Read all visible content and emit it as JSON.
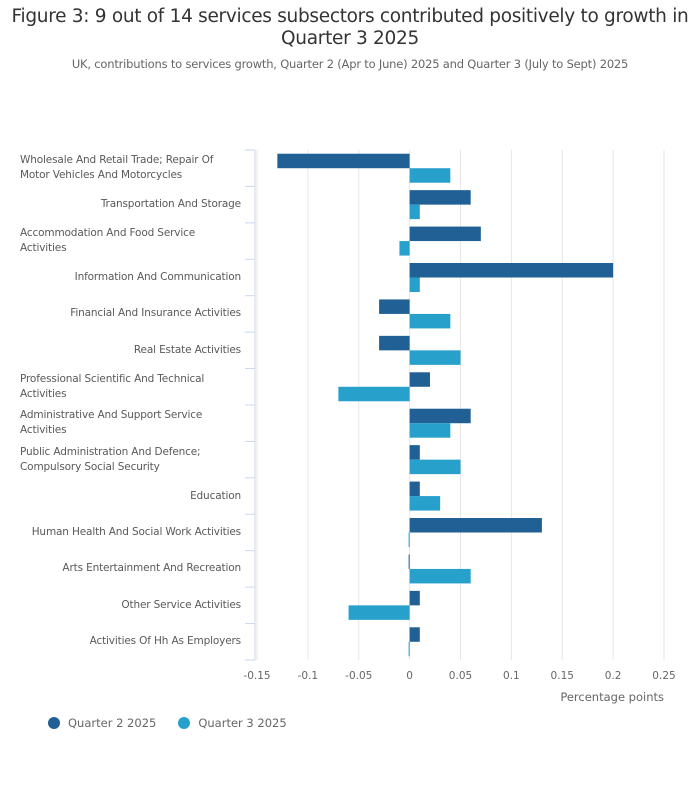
{
  "header": {
    "title": "Figure 3: 9 out of 14 services subsectors contributed positively to growth in Quarter 3 2025",
    "subtitle": "UK, contributions to services growth, Quarter 2 (Apr to June) 2025 and Quarter 3 (July to Sept) 2025"
  },
  "colors": {
    "q2": "#206095",
    "q3": "#27a0cc",
    "grid": "#e6e6e6",
    "axis": "#ccd6eb"
  },
  "chart_data": {
    "type": "bar",
    "orientation": "horizontal",
    "title": "Figure 3: 9 out of 14 services subsectors contributed positively to growth in Quarter 3 2025",
    "subtitle": "UK, contributions to services growth, Quarter 2 (Apr to June) 2025 and Quarter 3 (July to Sept) 2025",
    "xlabel": "Percentage points",
    "ylabel": "",
    "xlim": [
      -0.15,
      0.25
    ],
    "xticks": [
      -0.15,
      -0.1,
      -0.05,
      0,
      0.05,
      0.1,
      0.15,
      0.2,
      0.25
    ],
    "xtick_labels": [
      "-0.15",
      "-0.1",
      "-0.05",
      "0",
      "0.05",
      "0.1",
      "0.15",
      "0.2",
      "0.25"
    ],
    "grid": true,
    "legend_position": "bottom-left",
    "categories": [
      "Wholesale And Retail Trade; Repair Of Motor Vehicles And Motorcycles",
      "Transportation And Storage",
      "Accommodation And Food Service Activities",
      "Information And Communication",
      "Financial And Insurance Activities",
      "Real Estate Activities",
      "Professional Scientific And Technical Activities",
      "Administrative And Support Service Activities",
      "Public Administration And Defence; Compulsory Social Security",
      "Education",
      "Human Health And Social Work Activities",
      "Arts Entertainment And Recreation",
      "Other Service Activities",
      "Activities Of Hh As Employers"
    ],
    "category_display": [
      [
        "Wholesale And Retail Trade; Repair Of",
        "Motor Vehicles And Motorcycles"
      ],
      [
        "Transportation And Storage"
      ],
      [
        "Accommodation And Food Service",
        "Activities"
      ],
      [
        "Information And Communication"
      ],
      [
        "Financial And Insurance Activities"
      ],
      [
        "Real Estate Activities"
      ],
      [
        "Professional Scientific And Technical",
        "Activities"
      ],
      [
        "Administrative And Support Service",
        "Activities"
      ],
      [
        "Public Administration And Defence;",
        "Compulsory Social Security"
      ],
      [
        "Education"
      ],
      [
        "Human Health And Social Work Activities"
      ],
      [
        "Arts Entertainment And Recreation"
      ],
      [
        "Other Service Activities"
      ],
      [
        "Activities Of Hh As Employers"
      ]
    ],
    "series": [
      {
        "name": "Quarter 2 2025",
        "color": "#206095",
        "values": [
          -0.13,
          0.06,
          0.07,
          0.2,
          -0.03,
          -0.03,
          0.02,
          0.06,
          0.01,
          0.01,
          0.13,
          0.0,
          0.01,
          0.01
        ]
      },
      {
        "name": "Quarter 3 2025",
        "color": "#27a0cc",
        "values": [
          0.04,
          0.01,
          -0.01,
          0.01,
          0.04,
          0.05,
          -0.07,
          0.04,
          0.05,
          0.03,
          0.0,
          0.06,
          -0.06,
          0.0
        ]
      }
    ]
  },
  "legend": {
    "items": [
      {
        "label": "Quarter 2 2025",
        "color": "#206095"
      },
      {
        "label": "Quarter 3 2025",
        "color": "#27a0cc"
      }
    ]
  }
}
